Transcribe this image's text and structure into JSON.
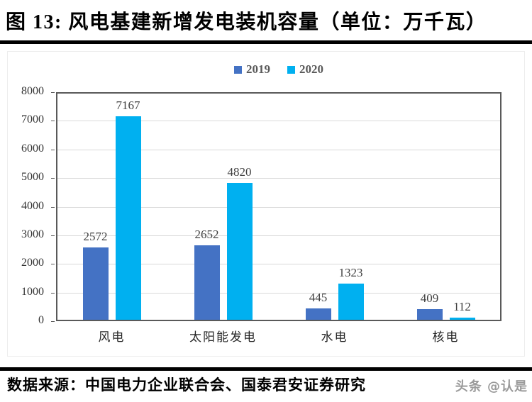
{
  "header": {
    "title": "图 13: 风电基建新增发电装机容量（单位：万千瓦）"
  },
  "legend": [
    {
      "label": "2019",
      "color": "#4472C4"
    },
    {
      "label": "2020",
      "color": "#00B0F0"
    }
  ],
  "chart_data": {
    "type": "bar",
    "title": "图 13: 风电基建新增发电装机容量（单位：万千瓦）",
    "categories": [
      "风电",
      "太阳能发电",
      "水电",
      "核电"
    ],
    "series": [
      {
        "name": "2019",
        "color": "#4472C4",
        "values": [
          2572,
          2652,
          445,
          409
        ]
      },
      {
        "name": "2020",
        "color": "#00B0F0",
        "values": [
          7167,
          4820,
          1323,
          112
        ]
      }
    ],
    "xlabel": "",
    "ylabel": "",
    "ylim": [
      0,
      8000
    ],
    "yticks": [
      0,
      1000,
      2000,
      3000,
      4000,
      5000,
      6000,
      7000,
      8000
    ],
    "grid": true,
    "legend_position": "top"
  },
  "footer": {
    "source": "数据来源：中国电力企业联合会、国泰君安证券研究",
    "watermark": "头条 @认是"
  }
}
